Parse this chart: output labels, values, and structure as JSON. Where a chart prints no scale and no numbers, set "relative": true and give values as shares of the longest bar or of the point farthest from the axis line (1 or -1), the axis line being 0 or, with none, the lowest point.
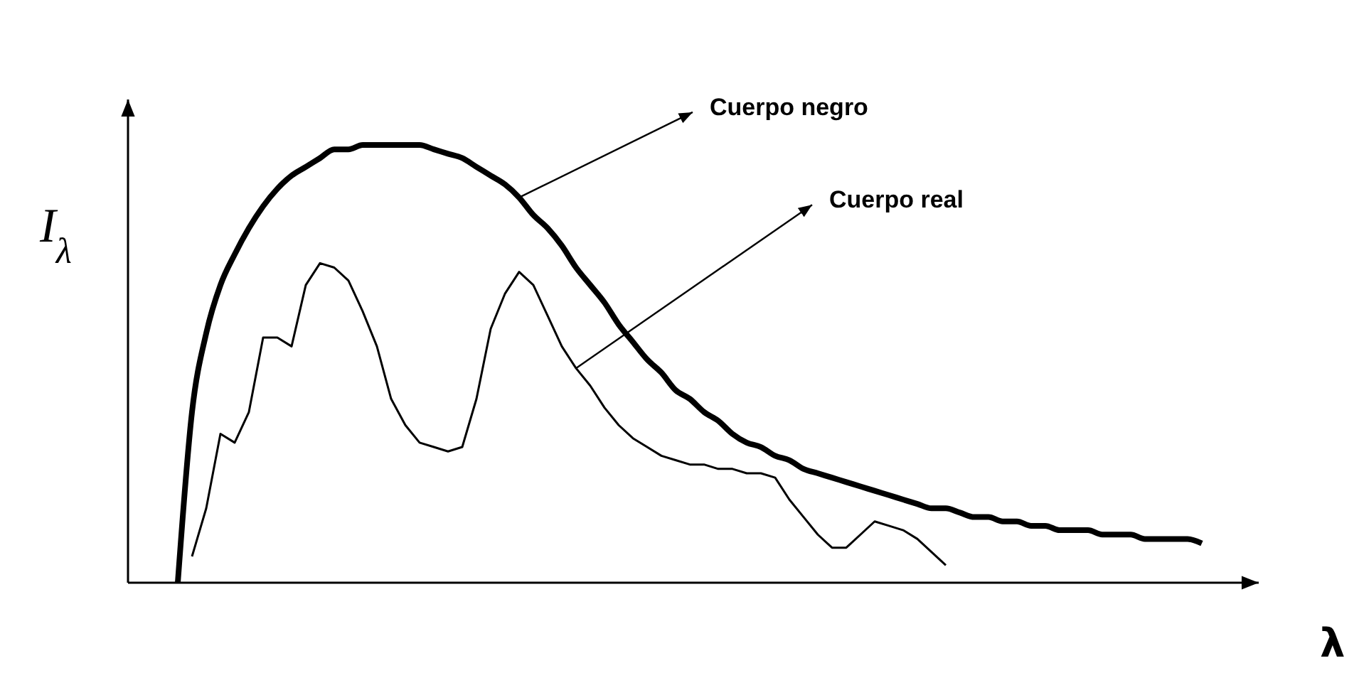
{
  "chart_data": {
    "type": "line",
    "relative": true,
    "ylabel": "I$_{λ}$",
    "xlabel": "λ",
    "categories": [
      null,
      null,
      null,
      null,
      null,
      null,
      null,
      null,
      null,
      null,
      null,
      null,
      null,
      null,
      null,
      null,
      null,
      null,
      null,
      null,
      null,
      null,
      null,
      null,
      null,
      null,
      null,
      null,
      null,
      null,
      null,
      null,
      null,
      null,
      null,
      null,
      null,
      null,
      null,
      null,
      null,
      null,
      null,
      null,
      null,
      null,
      null,
      null,
      null,
      null,
      null,
      null,
      null,
      null,
      null,
      null,
      null,
      null,
      null,
      null,
      null,
      null,
      null,
      null,
      null,
      null,
      null,
      null,
      null,
      null,
      null,
      null,
      null
    ],
    "series": [
      {
        "name": "Cuerpo negro",
        "color": "#000000",
        "values": [
          0,
          0.39,
          0.57,
          0.68,
          0.75,
          0.81,
          0.86,
          0.9,
          0.93,
          0.95,
          0.97,
          0.99,
          0.99,
          1,
          1,
          1,
          1,
          1,
          0.99,
          0.98,
          0.97,
          0.95,
          0.93,
          0.91,
          0.88,
          0.84,
          0.81,
          0.77,
          0.72,
          0.68,
          0.64,
          0.59,
          0.55,
          0.51,
          0.48,
          0.44,
          0.42,
          0.39,
          0.37,
          0.34,
          0.32,
          0.31,
          0.29,
          0.28,
          0.26,
          0.25,
          0.24,
          0.23,
          0.22,
          0.21,
          0.2,
          0.19,
          0.18,
          0.17,
          0.17,
          0.16,
          0.15,
          0.15,
          0.14,
          0.14,
          0.13,
          0.13,
          0.12,
          0.12,
          0.12,
          0.11,
          0.11,
          0.11,
          0.1,
          0.1,
          0.1,
          0.1,
          0.09
        ]
      },
      {
        "name": "Cuerpo real",
        "color": "#000000",
        "values": [
          null,
          0.06,
          0.17,
          0.34,
          0.32,
          0.39,
          0.56,
          0.56,
          0.54,
          0.68,
          0.73,
          0.72,
          0.69,
          0.62,
          0.54,
          0.42,
          0.36,
          0.32,
          0.31,
          0.3,
          0.31,
          0.42,
          0.58,
          0.66,
          0.71,
          0.68,
          0.61,
          0.54,
          0.49,
          0.45,
          0.4,
          0.36,
          0.33,
          0.31,
          0.29,
          0.28,
          0.27,
          0.27,
          0.26,
          0.26,
          0.25,
          0.25,
          0.24,
          0.19,
          0.15,
          0.11,
          0.08,
          0.08,
          0.11,
          0.14,
          0.13,
          0.12,
          0.1,
          0.07,
          0.04,
          null,
          null,
          null,
          null,
          null,
          null,
          null,
          null,
          null,
          null,
          null,
          null,
          null,
          null,
          null,
          null,
          null,
          null
        ]
      }
    ]
  }
}
